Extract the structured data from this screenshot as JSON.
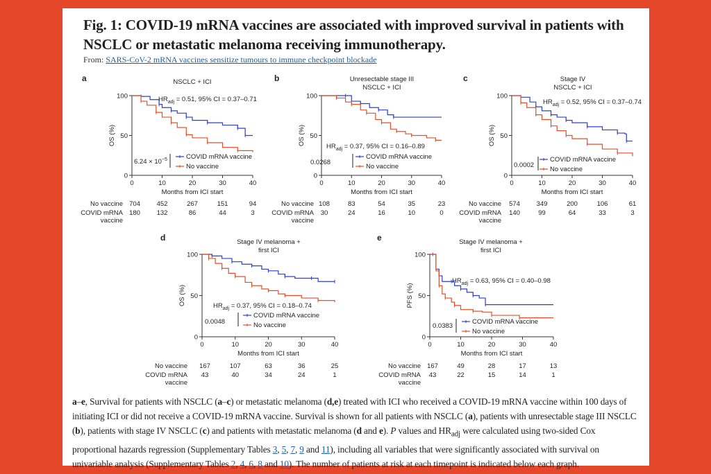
{
  "title": "Fig. 1: COVID-19 mRNA vaccines are associated with improved survival in patients with NSCLC or metastatic melanoma receiving immunotherapy.",
  "from_label": "From:",
  "from_link": "SARS-CoV-2 mRNA vaccines sensitize tumours to immune checkpoint blockade",
  "colors": {
    "background": "#e5472b",
    "vaccine": "#2b3fcf",
    "no_vaccine": "#e0502a",
    "link": "#1f5fa0"
  },
  "caption": [
    {
      "t": "a",
      "s": "b"
    },
    {
      "t": "–"
    },
    {
      "t": "e",
      "s": "b"
    },
    {
      "t": ", Survival for patients with NSCLC ("
    },
    {
      "t": "a",
      "s": "b"
    },
    {
      "t": "–"
    },
    {
      "t": "c",
      "s": "b"
    },
    {
      "t": ") or metastatic melanoma ("
    },
    {
      "t": "d,e",
      "s": "b"
    },
    {
      "t": ") treated with ICI who received a COVID-19 mRNA vaccine within 100 days of initiating ICI or did not receive a COVID-19 mRNA vaccine. Survival is shown for all patients with NSCLC ("
    },
    {
      "t": "a",
      "s": "b"
    },
    {
      "t": "), patients with unresectable stage III NSCLC ("
    },
    {
      "t": "b",
      "s": "b"
    },
    {
      "t": "), patients with stage IV NSCLC ("
    },
    {
      "t": "c",
      "s": "b"
    },
    {
      "t": ") and patients with metastatic melanoma ("
    },
    {
      "t": "d",
      "s": "b"
    },
    {
      "t": " and "
    },
    {
      "t": "e",
      "s": "b"
    },
    {
      "t": "). "
    },
    {
      "t": "P",
      "s": "i"
    },
    {
      "t": " values and HR"
    },
    {
      "t": "adj",
      "s": "sub"
    },
    {
      "t": " were calculated using two-sided Cox proportional hazards regression (Supplementary Tables "
    },
    {
      "t": "3",
      "s": "a"
    },
    {
      "t": ", "
    },
    {
      "t": "5",
      "s": "a"
    },
    {
      "t": ", "
    },
    {
      "t": "7",
      "s": "a"
    },
    {
      "t": ", "
    },
    {
      "t": "9",
      "s": "a"
    },
    {
      "t": " and "
    },
    {
      "t": "11",
      "s": "a"
    },
    {
      "t": "), including all variables that were significantly associated with survival on univariable analysis (Supplementary Tables "
    },
    {
      "t": "2",
      "s": "a"
    },
    {
      "t": ", "
    },
    {
      "t": "4",
      "s": "a"
    },
    {
      "t": ", "
    },
    {
      "t": "6",
      "s": "a"
    },
    {
      "t": ", "
    },
    {
      "t": "8",
      "s": "a"
    },
    {
      "t": " and "
    },
    {
      "t": "10",
      "s": "a"
    },
    {
      "t": "). The number of patients at risk at each timepoint is indicated below each graph."
    }
  ],
  "chart_data": [
    {
      "panel": "a",
      "type": "line",
      "title": [
        "NSCLC + ICI"
      ],
      "ylabel": "OS (%)",
      "xlabel": "Months from ICI start",
      "xlim": [
        0,
        40
      ],
      "ylim": [
        0,
        100
      ],
      "xticks": [
        0,
        10,
        20,
        30,
        40
      ],
      "yticks": [
        0,
        50,
        100
      ],
      "hr": {
        "pre": "HR",
        "sub": "adj",
        "rest": " = 0.51, 95% CI = 0.37–0.71"
      },
      "p_value": {
        "base": "6.24 × 10",
        "sup": "−5"
      },
      "series": [
        {
          "name": "COVID mRNA vaccine",
          "points": [
            [
              0,
              100
            ],
            [
              3,
              99
            ],
            [
              6,
              95
            ],
            [
              9,
              89
            ],
            [
              10,
              85
            ],
            [
              13,
              81
            ],
            [
              15,
              78
            ],
            [
              18,
              73
            ],
            [
              20,
              69
            ],
            [
              25,
              66
            ],
            [
              30,
              63
            ],
            [
              35,
              59
            ],
            [
              37.5,
              58
            ],
            [
              37.5,
              50
            ],
            [
              40,
              50
            ]
          ]
        },
        {
          "name": "No vaccine",
          "points": [
            [
              0,
              100
            ],
            [
              3,
              93
            ],
            [
              5,
              88
            ],
            [
              8,
              79
            ],
            [
              10,
              73
            ],
            [
              13,
              66
            ],
            [
              15,
              60
            ],
            [
              18,
              51
            ],
            [
              20,
              47
            ],
            [
              25,
              41
            ],
            [
              30,
              35
            ],
            [
              35,
              31
            ],
            [
              40,
              29
            ]
          ]
        }
      ],
      "risk_table": {
        "rows": [
          {
            "label": [
              "No vaccine"
            ],
            "values": [
              704,
              452,
              267,
              151,
              94
            ]
          },
          {
            "label": [
              "COVID mRNA",
              "vaccine"
            ],
            "values": [
              180,
              132,
              86,
              44,
              3
            ]
          }
        ]
      }
    },
    {
      "panel": "b",
      "type": "line",
      "title": [
        "Unresectable stage III",
        "NSCLC + ICI"
      ],
      "ylabel": "OS (%)",
      "xlabel": "Months from ICI start",
      "xlim": [
        0,
        40
      ],
      "ylim": [
        0,
        100
      ],
      "xticks": [
        0,
        10,
        20,
        30,
        40
      ],
      "yticks": [
        0,
        50,
        100
      ],
      "hr": {
        "pre": "HR",
        "sub": "adj",
        "rest": " = 0.37, 95% CI = 0.16–0.89"
      },
      "p_value": {
        "base": "0.0268",
        "sup": ""
      },
      "series": [
        {
          "name": "COVID mRNA vaccine",
          "points": [
            [
              0,
              100
            ],
            [
              8,
              100
            ],
            [
              10,
              93
            ],
            [
              13,
              90
            ],
            [
              16,
              85
            ],
            [
              19,
              82
            ],
            [
              22,
              76
            ],
            [
              24,
              73
            ],
            [
              40,
              73
            ]
          ]
        },
        {
          "name": "No vaccine",
          "points": [
            [
              0,
              100
            ],
            [
              5,
              97
            ],
            [
              8,
              92
            ],
            [
              10,
              89
            ],
            [
              13,
              82
            ],
            [
              15,
              78
            ],
            [
              18,
              70
            ],
            [
              20,
              66
            ],
            [
              23,
              58
            ],
            [
              25,
              55
            ],
            [
              28,
              52
            ],
            [
              30,
              50
            ],
            [
              35,
              47
            ],
            [
              38,
              44
            ],
            [
              40,
              44
            ]
          ]
        }
      ],
      "risk_table": {
        "rows": [
          {
            "label": [
              "No vaccine"
            ],
            "values": [
              108,
              83,
              54,
              35,
              23
            ]
          },
          {
            "label": [
              "COVID mRNA",
              "vaccine"
            ],
            "values": [
              30,
              24,
              16,
              10,
              0
            ]
          }
        ]
      }
    },
    {
      "panel": "c",
      "type": "line",
      "title": [
        "Stage IV",
        "NSCLC + ICI"
      ],
      "ylabel": "OS (%)",
      "xlabel": "Months from ICI start",
      "xlim": [
        0,
        40
      ],
      "ylim": [
        0,
        100
      ],
      "xticks": [
        0,
        10,
        20,
        30,
        40
      ],
      "yticks": [
        0,
        50,
        100
      ],
      "hr": {
        "pre": "HR",
        "sub": "adj",
        "rest": " = 0.52, 95% CI = 0.37–0.74"
      },
      "p_value": {
        "base": "0.0002",
        "sup": ""
      },
      "series": [
        {
          "name": "COVID mRNA vaccine",
          "points": [
            [
              0,
              100
            ],
            [
              3,
              98
            ],
            [
              6,
              92
            ],
            [
              8,
              86
            ],
            [
              10,
              81
            ],
            [
              13,
              76
            ],
            [
              15,
              73
            ],
            [
              18,
              69
            ],
            [
              20,
              66
            ],
            [
              25,
              61
            ],
            [
              30,
              57
            ],
            [
              35,
              53
            ],
            [
              37.5,
              52
            ],
            [
              38,
              43
            ],
            [
              40,
              43
            ]
          ]
        },
        {
          "name": "No vaccine",
          "points": [
            [
              0,
              100
            ],
            [
              3,
              91
            ],
            [
              5,
              85
            ],
            [
              8,
              76
            ],
            [
              10,
              70
            ],
            [
              13,
              62
            ],
            [
              15,
              56
            ],
            [
              18,
              50
            ],
            [
              20,
              46
            ],
            [
              25,
              39
            ],
            [
              30,
              33
            ],
            [
              35,
              28
            ],
            [
              40,
              24
            ]
          ]
        }
      ],
      "risk_table": {
        "rows": [
          {
            "label": [
              "No vaccine"
            ],
            "values": [
              574,
              349,
              200,
              106,
              61
            ]
          },
          {
            "label": [
              "COVID mRNA",
              "vaccine"
            ],
            "values": [
              140,
              99,
              64,
              33,
              3
            ]
          }
        ]
      }
    },
    {
      "panel": "d",
      "type": "line",
      "title": [
        "Stage IV melanoma +",
        "first ICI"
      ],
      "ylabel": "OS (%)",
      "xlabel": "Months from ICI start",
      "xlim": [
        0,
        40
      ],
      "ylim": [
        0,
        100
      ],
      "xticks": [
        0,
        10,
        20,
        30,
        40
      ],
      "yticks": [
        0,
        50,
        100
      ],
      "hr": {
        "pre": "HR",
        "sub": "adj",
        "rest": " = 0.37, 95% CI = 0.18–0.74"
      },
      "p_value": {
        "base": "0.0048",
        "sup": ""
      },
      "series": [
        {
          "name": "COVID mRNA vaccine",
          "points": [
            [
              0,
              100
            ],
            [
              3,
              98
            ],
            [
              6,
              95
            ],
            [
              9,
              91
            ],
            [
              12,
              88
            ],
            [
              15,
              86
            ],
            [
              18,
              82
            ],
            [
              20,
              80
            ],
            [
              23,
              76
            ],
            [
              25,
              73
            ],
            [
              28,
              71
            ],
            [
              33,
              71
            ],
            [
              35,
              67
            ],
            [
              40,
              67
            ]
          ]
        },
        {
          "name": "No vaccine",
          "points": [
            [
              0,
              100
            ],
            [
              2,
              95
            ],
            [
              4,
              89
            ],
            [
              6,
              83
            ],
            [
              8,
              77
            ],
            [
              10,
              73
            ],
            [
              13,
              66
            ],
            [
              15,
              62
            ],
            [
              18,
              58
            ],
            [
              20,
              56
            ],
            [
              23,
              52
            ],
            [
              25,
              50
            ],
            [
              30,
              47
            ],
            [
              35,
              44
            ],
            [
              40,
              42
            ]
          ]
        }
      ],
      "risk_table": {
        "rows": [
          {
            "label": [
              "No vaccine"
            ],
            "values": [
              167,
              107,
              63,
              36,
              25
            ]
          },
          {
            "label": [
              "COVID mRNA",
              "vaccine"
            ],
            "values": [
              43,
              40,
              34,
              24,
              1
            ]
          }
        ]
      }
    },
    {
      "panel": "e",
      "type": "line",
      "title": [
        "Stage IV melanoma +",
        "first ICI"
      ],
      "ylabel": "PFS (%)",
      "xlabel": "Months from ICI start",
      "xlim": [
        0,
        40
      ],
      "ylim": [
        0,
        100
      ],
      "xticks": [
        0,
        10,
        20,
        30,
        40
      ],
      "yticks": [
        0,
        50,
        100
      ],
      "hr": {
        "pre": "HR",
        "sub": "adj",
        "rest": " = 0.63, 95% CI = 0.40–0.98"
      },
      "p_value": {
        "base": "0.0383",
        "sup": ""
      },
      "series": [
        {
          "name": "COVID mRNA vaccine",
          "points": [
            [
              0,
              100
            ],
            [
              1,
              100
            ],
            [
              2,
              82
            ],
            [
              3,
              74
            ],
            [
              4,
              67
            ],
            [
              7,
              67
            ],
            [
              8,
              62
            ],
            [
              10,
              58
            ],
            [
              12,
              54
            ],
            [
              14,
              50
            ],
            [
              16,
              47
            ],
            [
              18,
              39
            ],
            [
              40,
              39
            ]
          ]
        },
        {
          "name": "No vaccine",
          "points": [
            [
              0,
              100
            ],
            [
              1,
              100
            ],
            [
              2,
              80
            ],
            [
              3,
              62
            ],
            [
              4,
              52
            ],
            [
              5,
              47
            ],
            [
              7,
              42
            ],
            [
              8,
              38
            ],
            [
              10,
              33
            ],
            [
              14,
              31
            ],
            [
              17,
              30
            ],
            [
              20,
              26
            ],
            [
              28,
              26
            ],
            [
              29,
              23
            ],
            [
              40,
              23
            ]
          ]
        }
      ],
      "risk_table": {
        "rows": [
          {
            "label": [
              "No vaccine"
            ],
            "values": [
              167,
              49,
              28,
              17,
              13
            ]
          },
          {
            "label": [
              "COVID mRNA",
              "vaccine"
            ],
            "values": [
              43,
              22,
              15,
              14,
              1
            ]
          }
        ]
      }
    }
  ]
}
